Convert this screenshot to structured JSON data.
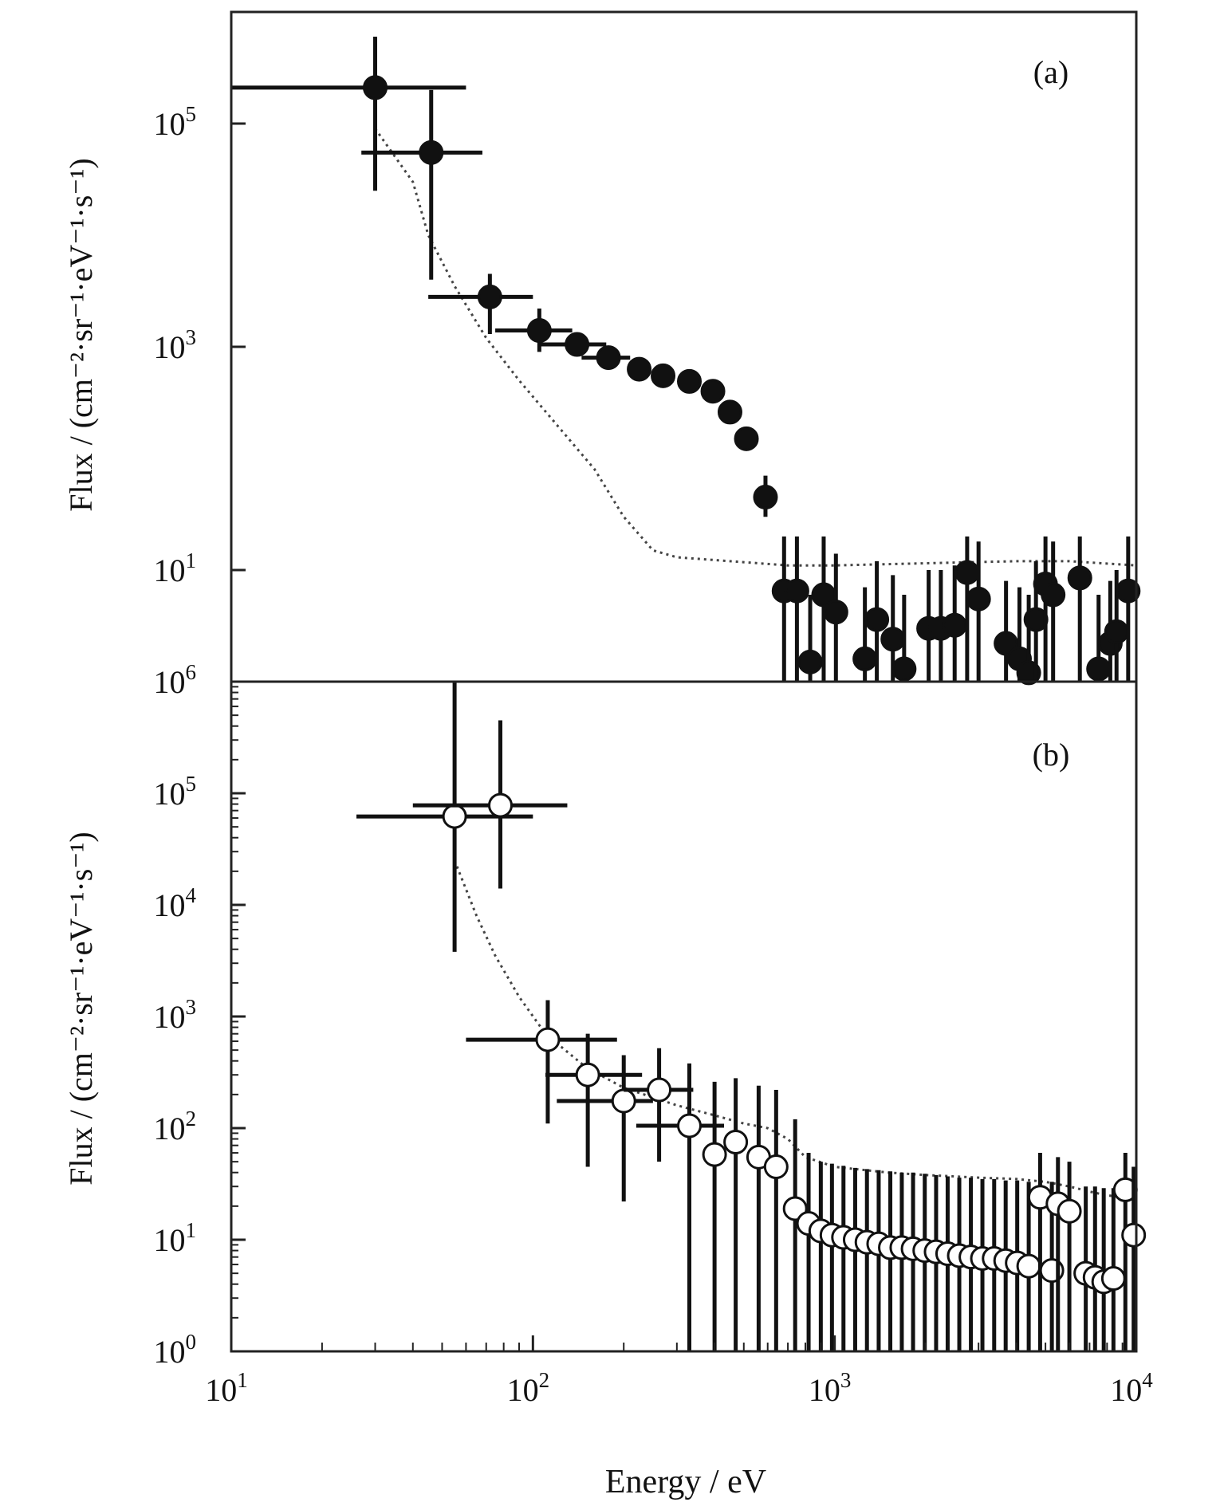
{
  "chart_data": [
    {
      "type": "scatter",
      "panel_label": "(a)",
      "xscale": "log",
      "yscale": "log",
      "xlim": [
        10,
        10000
      ],
      "ylim": [
        1,
        1000000
      ],
      "ylabel": "Flux / (cm⁻²·sr⁻¹·eV⁻¹·s⁻¹)",
      "y_ticks": [
        {
          "value": 10,
          "base": "10",
          "exp": "1"
        },
        {
          "value": 1000,
          "base": "10",
          "exp": "3"
        },
        {
          "value": 100000,
          "base": "10",
          "exp": "5"
        }
      ],
      "marker": "filled-circle",
      "series": [
        {
          "points": [
            {
              "x": 30,
              "y": 210000,
              "xerr": [
                10,
                60
              ],
              "yerr": [
                25000,
                600000
              ]
            },
            {
              "x": 46,
              "y": 55000,
              "xerr": [
                27,
                68
              ],
              "yerr": [
                4000,
                200000
              ]
            },
            {
              "x": 72,
              "y": 2800,
              "xerr": [
                45,
                100
              ],
              "yerr": [
                1300,
                4500
              ]
            },
            {
              "x": 105,
              "y": 1400,
              "xerr": [
                75,
                135
              ],
              "yerr": [
                900,
                2200
              ]
            },
            {
              "x": 140,
              "y": 1050,
              "xerr": [
                105,
                175
              ],
              "yerr": null
            },
            {
              "x": 178,
              "y": 800,
              "xerr": [
                145,
                210
              ],
              "yerr": null
            },
            {
              "x": 225,
              "y": 630,
              "xerr": null,
              "yerr": null
            },
            {
              "x": 270,
              "y": 550,
              "xerr": null,
              "yerr": null
            },
            {
              "x": 330,
              "y": 490,
              "xerr": null,
              "yerr": null
            },
            {
              "x": 395,
              "y": 400,
              "xerr": null,
              "yerr": null
            },
            {
              "x": 450,
              "y": 260,
              "xerr": null,
              "yerr": null
            },
            {
              "x": 510,
              "y": 150,
              "xerr": null,
              "yerr": null
            },
            {
              "x": 590,
              "y": 45,
              "xerr": null,
              "yerr": [
                30,
                70
              ]
            },
            {
              "x": 680,
              "y": 6.5,
              "xerr": null,
              "yerr": [
                1,
                20
              ]
            },
            {
              "x": 750,
              "y": 6.5,
              "xerr": null,
              "yerr": [
                1,
                20
              ]
            },
            {
              "x": 830,
              "y": 1.5,
              "xerr": null,
              "yerr": [
                1,
                6
              ]
            },
            {
              "x": 920,
              "y": 6.0,
              "xerr": null,
              "yerr": [
                1,
                20
              ]
            },
            {
              "x": 1010,
              "y": 4.2,
              "xerr": null,
              "yerr": [
                1,
                14
              ]
            },
            {
              "x": 1260,
              "y": 1.6,
              "xerr": null,
              "yerr": [
                1,
                7
              ]
            },
            {
              "x": 1380,
              "y": 3.6,
              "xerr": null,
              "yerr": [
                1,
                12
              ]
            },
            {
              "x": 1560,
              "y": 2.4,
              "xerr": null,
              "yerr": [
                1,
                9
              ]
            },
            {
              "x": 1700,
              "y": 1.3,
              "xerr": null,
              "yerr": [
                1,
                6
              ]
            },
            {
              "x": 2050,
              "y": 3.0,
              "xerr": null,
              "yerr": [
                1,
                10
              ]
            },
            {
              "x": 2250,
              "y": 3.0,
              "xerr": null,
              "yerr": [
                1,
                10
              ]
            },
            {
              "x": 2500,
              "y": 3.2,
              "xerr": null,
              "yerr": [
                1,
                11
              ]
            },
            {
              "x": 2750,
              "y": 9.5,
              "xerr": null,
              "yerr": [
                1,
                20
              ]
            },
            {
              "x": 3000,
              "y": 5.5,
              "xerr": null,
              "yerr": [
                1,
                18
              ]
            },
            {
              "x": 3700,
              "y": 2.2,
              "xerr": null,
              "yerr": [
                1,
                8
              ]
            },
            {
              "x": 4100,
              "y": 1.6,
              "xerr": null,
              "yerr": [
                1,
                7
              ]
            },
            {
              "x": 4400,
              "y": 1.2,
              "xerr": null,
              "yerr": [
                1,
                6
              ]
            },
            {
              "x": 4650,
              "y": 3.6,
              "xerr": null,
              "yerr": [
                1,
                12
              ]
            },
            {
              "x": 5000,
              "y": 7.5,
              "xerr": null,
              "yerr": [
                1,
                20
              ]
            },
            {
              "x": 5300,
              "y": 6.0,
              "xerr": null,
              "yerr": [
                1,
                18
              ]
            },
            {
              "x": 6500,
              "y": 8.5,
              "xerr": null,
              "yerr": [
                1,
                20
              ]
            },
            {
              "x": 7500,
              "y": 1.3,
              "xerr": null,
              "yerr": [
                1,
                6
              ]
            },
            {
              "x": 8200,
              "y": 2.2,
              "xerr": null,
              "yerr": [
                1,
                8
              ]
            },
            {
              "x": 8600,
              "y": 2.8,
              "xerr": null,
              "yerr": [
                1,
                10
              ]
            },
            {
              "x": 9400,
              "y": 6.5,
              "xerr": null,
              "yerr": [
                1,
                20
              ]
            }
          ]
        }
      ],
      "model_curve": {
        "style": "dotted",
        "points": [
          [
            30,
            90000
          ],
          [
            40,
            30000
          ],
          [
            45,
            10000
          ],
          [
            55,
            3500
          ],
          [
            70,
            1200
          ],
          [
            90,
            500
          ],
          [
            120,
            200
          ],
          [
            160,
            80
          ],
          [
            200,
            30
          ],
          [
            250,
            15
          ],
          [
            300,
            13
          ],
          [
            450,
            12
          ],
          [
            700,
            11
          ],
          [
            1000,
            11
          ],
          [
            2000,
            11.5
          ],
          [
            4000,
            12
          ],
          [
            6000,
            12
          ],
          [
            10000,
            11
          ]
        ]
      }
    },
    {
      "type": "scatter",
      "panel_label": "(b)",
      "xscale": "log",
      "yscale": "log",
      "xlim": [
        10,
        10000
      ],
      "ylim": [
        1,
        1000000
      ],
      "xlabel": "Energy / eV",
      "ylabel": "Flux / (cm⁻²·sr⁻¹·eV⁻¹·s⁻¹)",
      "x_ticks": [
        {
          "value": 10,
          "base": "10",
          "exp": "1"
        },
        {
          "value": 100,
          "base": "10",
          "exp": "2"
        },
        {
          "value": 1000,
          "base": "10",
          "exp": "3"
        },
        {
          "value": 10000,
          "base": "10",
          "exp": "4"
        }
      ],
      "y_ticks": [
        {
          "value": 1,
          "base": "10",
          "exp": "0"
        },
        {
          "value": 10,
          "base": "10",
          "exp": "1"
        },
        {
          "value": 100,
          "base": "10",
          "exp": "2"
        },
        {
          "value": 1000,
          "base": "10",
          "exp": "3"
        },
        {
          "value": 10000,
          "base": "10",
          "exp": "4"
        },
        {
          "value": 100000,
          "base": "10",
          "exp": "5"
        },
        {
          "value": 1000000,
          "base": "10",
          "exp": "6"
        }
      ],
      "marker": "open-circle",
      "series": [
        {
          "points": [
            {
              "x": 55,
              "y": 62000,
              "xerr": [
                26,
                100
              ],
              "yerr": [
                3800,
                1000000
              ]
            },
            {
              "x": 78,
              "y": 78000,
              "xerr": [
                40,
                130
              ],
              "yerr": [
                14000,
                450000
              ]
            },
            {
              "x": 112,
              "y": 620,
              "xerr": [
                60,
                190
              ],
              "yerr": [
                110,
                1400
              ]
            },
            {
              "x": 152,
              "y": 300,
              "xerr": [
                110,
                230
              ],
              "yerr": [
                45,
                700
              ]
            },
            {
              "x": 200,
              "y": 175,
              "xerr": [
                120,
                250
              ],
              "yerr": [
                22,
                450
              ]
            },
            {
              "x": 262,
              "y": 220,
              "xerr": [
                200,
                340
              ],
              "yerr": [
                50,
                520
              ]
            },
            {
              "x": 330,
              "y": 105,
              "xerr": [
                220,
                430
              ],
              "yerr": [
                1,
                380
              ]
            },
            {
              "x": 400,
              "y": 58,
              "xerr": null,
              "yerr": [
                1,
                260
              ]
            },
            {
              "x": 470,
              "y": 75,
              "xerr": null,
              "yerr": [
                1,
                280
              ]
            },
            {
              "x": 560,
              "y": 55,
              "xerr": null,
              "yerr": [
                1,
                240
              ]
            },
            {
              "x": 640,
              "y": 45,
              "xerr": null,
              "yerr": [
                1,
                220
              ]
            },
            {
              "x": 740,
              "y": 19,
              "xerr": null,
              "yerr": [
                1,
                120
              ]
            },
            {
              "x": 820,
              "y": 14,
              "xerr": null,
              "yerr": [
                1,
                60
              ]
            },
            {
              "x": 900,
              "y": 12,
              "xerr": null,
              "yerr": [
                1,
                50
              ]
            },
            {
              "x": 980,
              "y": 11,
              "xerr": null,
              "yerr": [
                1,
                48
              ]
            },
            {
              "x": 1070,
              "y": 10.5,
              "xerr": null,
              "yerr": [
                1,
                46
              ]
            },
            {
              "x": 1170,
              "y": 10,
              "xerr": null,
              "yerr": [
                1,
                44
              ]
            },
            {
              "x": 1280,
              "y": 9.5,
              "xerr": null,
              "yerr": [
                1,
                43
              ]
            },
            {
              "x": 1400,
              "y": 9.2,
              "xerr": null,
              "yerr": [
                1,
                42
              ]
            },
            {
              "x": 1530,
              "y": 8.5,
              "xerr": null,
              "yerr": [
                1,
                41
              ]
            },
            {
              "x": 1670,
              "y": 8.5,
              "xerr": null,
              "yerr": [
                1,
                40
              ]
            },
            {
              "x": 1820,
              "y": 8.3,
              "xerr": null,
              "yerr": [
                1,
                40
              ]
            },
            {
              "x": 1990,
              "y": 8.0,
              "xerr": null,
              "yerr": [
                1,
                39
              ]
            },
            {
              "x": 2170,
              "y": 7.8,
              "xerr": null,
              "yerr": [
                1,
                38
              ]
            },
            {
              "x": 2370,
              "y": 7.5,
              "xerr": null,
              "yerr": [
                1,
                37
              ]
            },
            {
              "x": 2590,
              "y": 7.2,
              "xerr": null,
              "yerr": [
                1,
                36
              ]
            },
            {
              "x": 2830,
              "y": 7.0,
              "xerr": null,
              "yerr": [
                1,
                36
              ]
            },
            {
              "x": 3090,
              "y": 6.8,
              "xerr": null,
              "yerr": [
                1,
                35
              ]
            },
            {
              "x": 3380,
              "y": 6.8,
              "xerr": null,
              "yerr": [
                1,
                35
              ]
            },
            {
              "x": 3690,
              "y": 6.5,
              "xerr": null,
              "yerr": [
                1,
                34
              ]
            },
            {
              "x": 4030,
              "y": 6.2,
              "xerr": null,
              "yerr": [
                1,
                34
              ]
            },
            {
              "x": 4400,
              "y": 5.8,
              "xerr": null,
              "yerr": [
                1,
                33
              ]
            },
            {
              "x": 4800,
              "y": 24,
              "xerr": null,
              "yerr": [
                1,
                60
              ]
            },
            {
              "x": 5250,
              "y": 5.3,
              "xerr": null,
              "yerr": [
                1,
                33
              ]
            },
            {
              "x": 5500,
              "y": 21,
              "xerr": null,
              "yerr": [
                1,
                55
              ]
            },
            {
              "x": 6000,
              "y": 18,
              "xerr": null,
              "yerr": [
                1,
                50
              ]
            },
            {
              "x": 6800,
              "y": 5.0,
              "xerr": null,
              "yerr": [
                1,
                30
              ]
            },
            {
              "x": 7300,
              "y": 4.6,
              "xerr": null,
              "yerr": [
                1,
                30
              ]
            },
            {
              "x": 7800,
              "y": 4.2,
              "xerr": null,
              "yerr": [
                1,
                29
              ]
            },
            {
              "x": 8400,
              "y": 4.5,
              "xerr": null,
              "yerr": [
                1,
                29
              ]
            },
            {
              "x": 9200,
              "y": 28,
              "xerr": null,
              "yerr": [
                1,
                60
              ]
            },
            {
              "x": 9800,
              "y": 11,
              "xerr": null,
              "yerr": [
                1,
                45
              ]
            }
          ]
        }
      ],
      "model_curve": {
        "style": "dotted",
        "points": [
          [
            55,
            25000
          ],
          [
            65,
            8000
          ],
          [
            75,
            3500
          ],
          [
            90,
            1500
          ],
          [
            110,
            700
          ],
          [
            150,
            350
          ],
          [
            200,
            230
          ],
          [
            300,
            160
          ],
          [
            400,
            130
          ],
          [
            500,
            110
          ],
          [
            600,
            100
          ],
          [
            700,
            80
          ],
          [
            800,
            55
          ],
          [
            1000,
            45
          ],
          [
            1500,
            40
          ],
          [
            2000,
            38
          ],
          [
            3000,
            36
          ],
          [
            4000,
            35
          ],
          [
            5000,
            33
          ],
          [
            6000,
            30
          ],
          [
            7000,
            27
          ],
          [
            8000,
            25
          ],
          [
            9000,
            24
          ],
          [
            10000,
            23
          ]
        ]
      }
    }
  ]
}
